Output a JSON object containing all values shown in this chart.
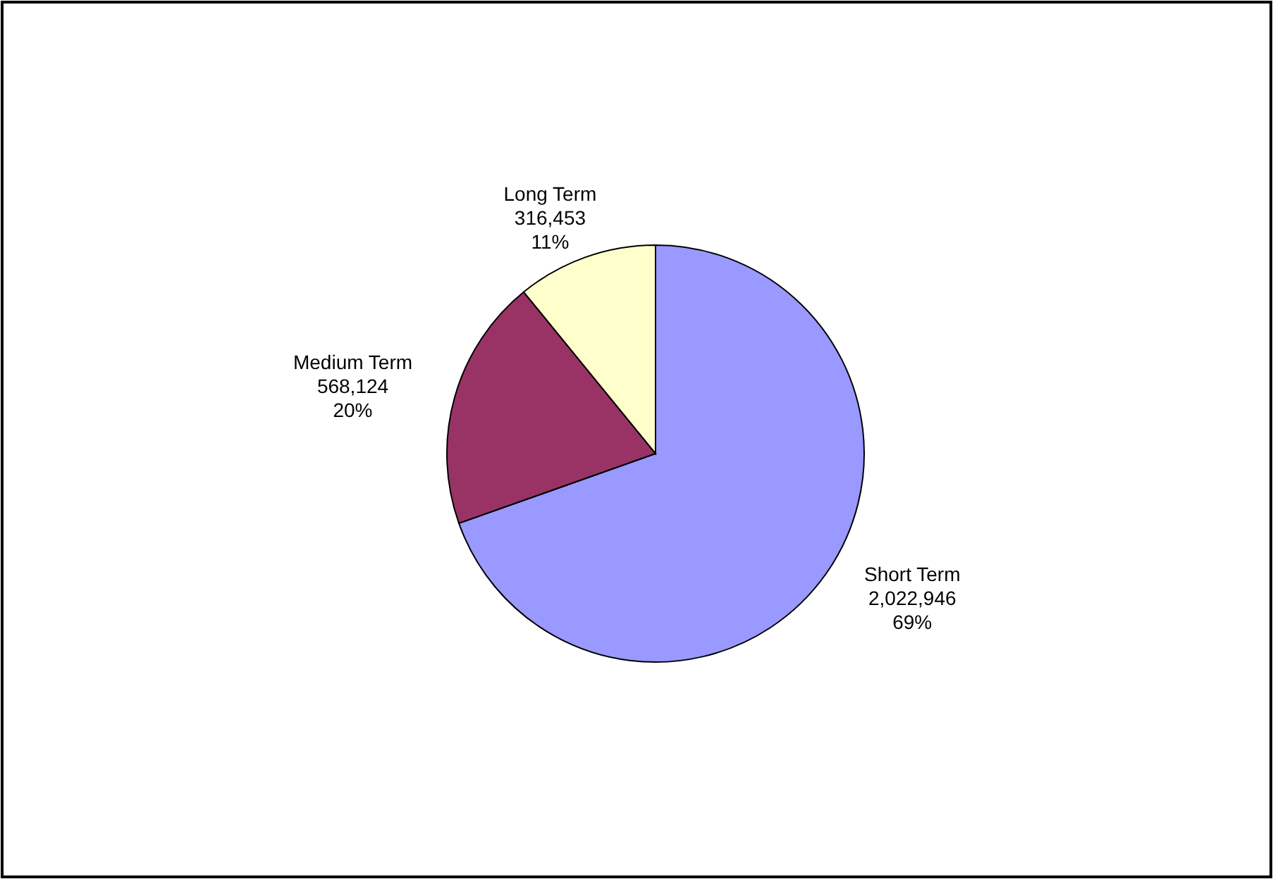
{
  "chart_data": {
    "type": "pie",
    "categories": [
      "Short Term",
      "Medium Term",
      "Long Term"
    ],
    "values": [
      2022946,
      568124,
      316453
    ],
    "colors": [
      "#9999ff",
      "#993366",
      "#ffffcc"
    ],
    "value_labels": [
      "2,022,946\n69%",
      "568,124\n20%",
      "316,453\n11%"
    ]
  }
}
